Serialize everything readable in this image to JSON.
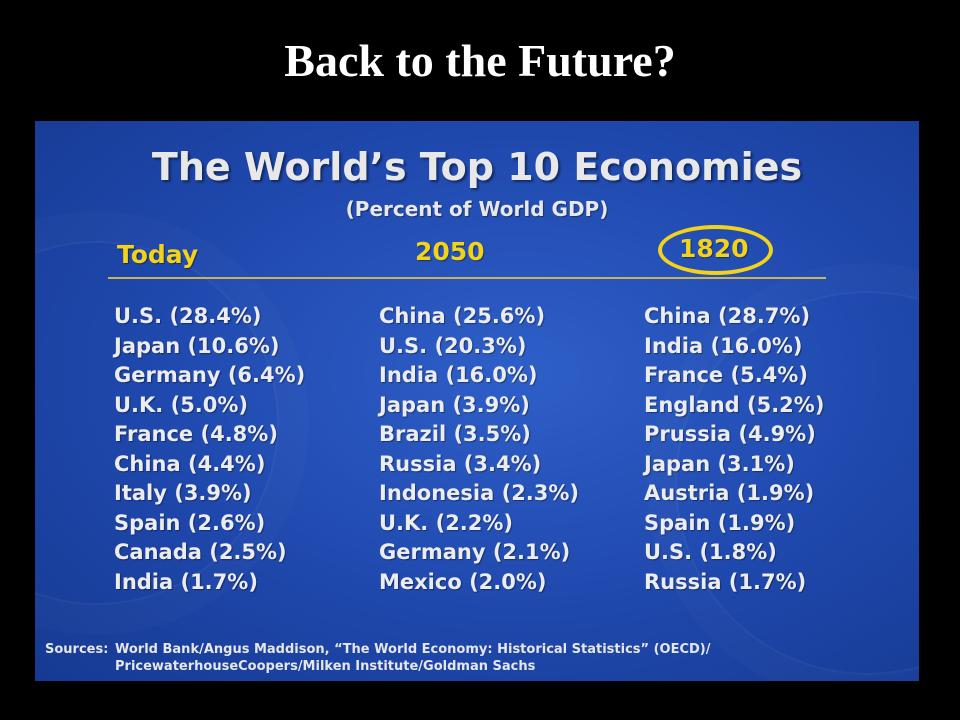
{
  "slide_title": "Back to the Future?",
  "panel": {
    "heading": "The World’s Top 10 Economies",
    "subheading": "(Percent of World GDP)",
    "columns": [
      {
        "header": "Today",
        "items": [
          "U.S. (28.4%)",
          "Japan (10.6%)",
          "Germany (6.4%)",
          "U.K. (5.0%)",
          "France (4.8%)",
          "China (4.4%)",
          "Italy (3.9%)",
          "Spain (2.6%)",
          "Canada (2.5%)",
          "India (1.7%)"
        ]
      },
      {
        "header": "2050",
        "items": [
          "China (25.6%)",
          "U.S. (20.3%)",
          "India (16.0%)",
          "Japan (3.9%)",
          "Brazil (3.5%)",
          "Russia (3.4%)",
          "Indonesia (2.3%)",
          "U.K. (2.2%)",
          "Germany (2.1%)",
          "Mexico (2.0%)"
        ]
      },
      {
        "header": "1820",
        "items": [
          "China (28.7%)",
          "India (16.0%)",
          "France (5.4%)",
          "England (5.2%)",
          "Prussia (4.9%)",
          "Japan (3.1%)",
          "Austria (1.9%)",
          "Spain (1.9%)",
          "U.S. (1.8%)",
          "Russia (1.7%)"
        ]
      }
    ],
    "sources_label": "Sources:",
    "sources_line1": "World Bank/Angus Maddison, “The World Economy: Historical Statistics” (OECD)/",
    "sources_line2": "PricewaterhouseCoopers/Milken Institute/Goldman Sachs"
  },
  "colors": {
    "background": "#000000",
    "panel_blue": "#1f48ad",
    "highlight_yellow": "#f3d21a",
    "text_light": "#ececec"
  }
}
